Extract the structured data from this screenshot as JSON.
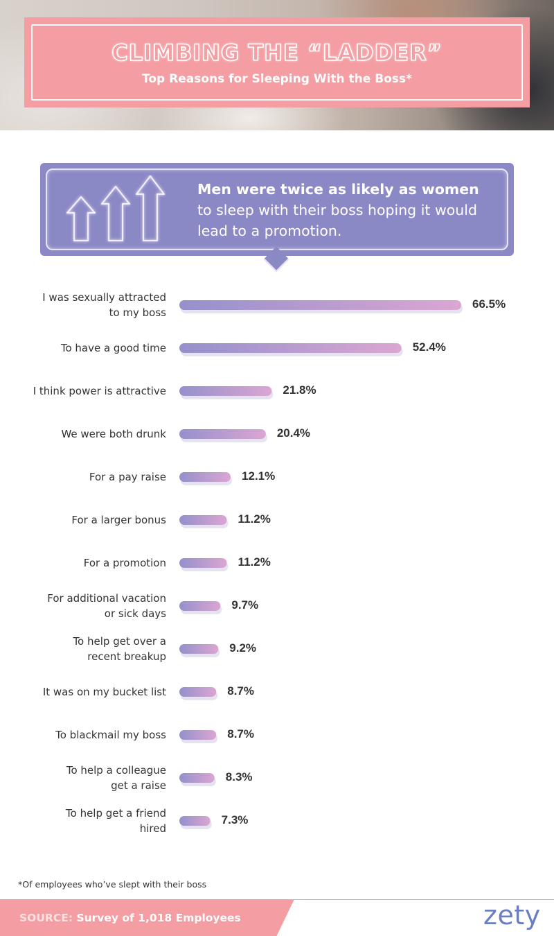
{
  "header": {
    "title": "CLIMBING THE “LADDER”",
    "subtitle": "Top Reasons for Sleeping With the Boss*"
  },
  "callout": {
    "headline": "Men were twice as likely as women",
    "body": "to sleep with their boss hoping it would lead to a promotion.",
    "icon": "three-up-arrows-icon"
  },
  "chart_data": {
    "type": "bar",
    "orientation": "horizontal",
    "value_format": "percent",
    "categories": [
      "I was sexually attracted to my boss",
      "To have a good time",
      "I think power is attractive",
      "We were both drunk",
      "For a pay raise",
      "For a larger bonus",
      "For a promotion",
      "For additional vacation or sick days",
      "To help get over a recent breakup",
      "It was on my bucket list",
      "To blackmail my boss",
      "To help a colleague get a raise",
      "To help get a friend hired"
    ],
    "label_lines": [
      [
        "I was sexually attracted",
        "to my boss"
      ],
      [
        "To have a good time"
      ],
      [
        "I think power is attractive"
      ],
      [
        "We were both drunk"
      ],
      [
        "For a pay raise"
      ],
      [
        "For a larger bonus"
      ],
      [
        "For a promotion"
      ],
      [
        "For additional vacation",
        "or sick days"
      ],
      [
        "To help get over a",
        "recent breakup"
      ],
      [
        "It was on my bucket list"
      ],
      [
        "To blackmail my boss"
      ],
      [
        "To help a colleague",
        "get a raise"
      ],
      [
        "To help get a friend",
        "hired"
      ]
    ],
    "values": [
      66.5,
      52.4,
      21.8,
      20.4,
      12.1,
      11.2,
      11.2,
      9.7,
      9.2,
      8.7,
      8.7,
      8.3,
      7.3
    ],
    "value_labels": [
      "66.5%",
      "52.4%",
      "21.8%",
      "20.4%",
      "12.1%",
      "11.2%",
      "11.2%",
      "9.7%",
      "9.2%",
      "8.7%",
      "8.7%",
      "8.3%",
      "7.3%"
    ],
    "xlim": [
      0,
      70
    ],
    "grid": false,
    "legend": "none",
    "colors": {
      "bar_start": "#9590cc",
      "bar_end": "#dba6d2",
      "bar_shadow": "#e6e3f1"
    }
  },
  "footer": {
    "footnote": "*Of employees who’ve slept with their boss",
    "source_key": "SOURCE:",
    "source_value": "Survey of 1,018 Employees",
    "logo": "zety"
  },
  "colors": {
    "accent_pink": "#f49da2",
    "callout_purple": "#8b88c6",
    "logo_blue": "#6b7fc0"
  }
}
